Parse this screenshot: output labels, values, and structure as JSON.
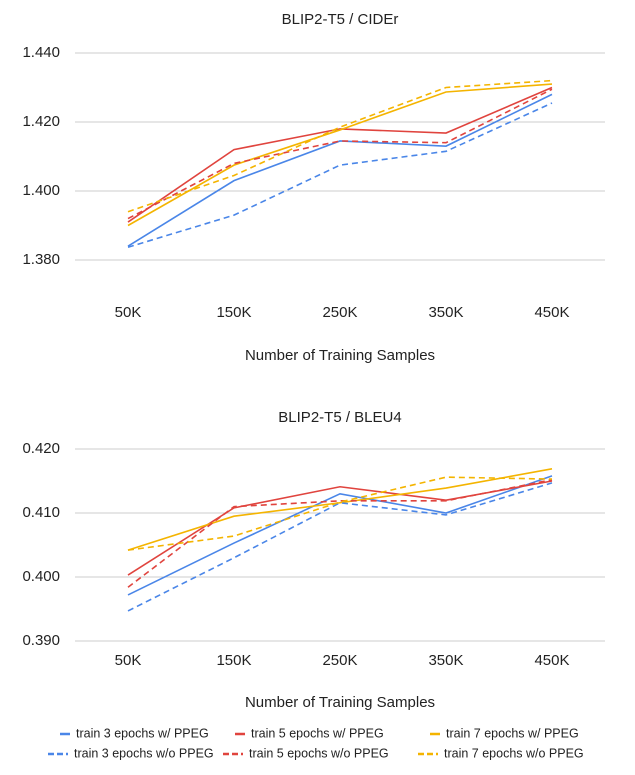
{
  "chart_data": [
    {
      "type": "line",
      "title": "BLIP2-T5 / CIDEr",
      "x_label": "Number of Training Samples",
      "categories": [
        "50K",
        "150K",
        "250K",
        "350K",
        "450K"
      ],
      "ylim": [
        1.38,
        1.44
      ],
      "yticks": [
        {
          "value": 1.38,
          "label": "1.380"
        },
        {
          "value": 1.4,
          "label": "1.400"
        },
        {
          "value": 1.42,
          "label": "1.420"
        },
        {
          "value": 1.44,
          "label": "1.440"
        }
      ],
      "grid": true,
      "series": [
        {
          "name": "train 3 epochs w/ PPEG",
          "color": "#4a86e8",
          "dashed": false,
          "values": [
            1.384,
            1.403,
            1.4145,
            1.413,
            1.428
          ]
        },
        {
          "name": "train 5 epochs w/ PPEG",
          "color": "#e0443e",
          "dashed": false,
          "values": [
            1.391,
            1.412,
            1.418,
            1.4168,
            1.43
          ]
        },
        {
          "name": "train 7 epochs w/ PPEG",
          "color": "#f4b400",
          "dashed": false,
          "values": [
            1.39,
            1.4075,
            1.4177,
            1.4287,
            1.431
          ]
        },
        {
          "name": "train 3 epochs w/o PPEG",
          "color": "#4a86e8",
          "dashed": true,
          "values": [
            1.3837,
            1.393,
            1.4075,
            1.4115,
            1.4255
          ]
        },
        {
          "name": "train 5 epochs w/o PPEG",
          "color": "#e0443e",
          "dashed": true,
          "values": [
            1.392,
            1.408,
            1.4145,
            1.414,
            1.4295
          ]
        },
        {
          "name": "train 7 epochs w/o PPEG",
          "color": "#f4b400",
          "dashed": true,
          "values": [
            1.394,
            1.4045,
            1.4185,
            1.43,
            1.432
          ]
        }
      ]
    },
    {
      "type": "line",
      "title": "BLIP2-T5 / BLEU4",
      "x_label": "Number of Training Samples",
      "categories": [
        "50K",
        "150K",
        "250K",
        "350K",
        "450K"
      ],
      "ylim": [
        0.39,
        0.42
      ],
      "yticks": [
        {
          "value": 0.39,
          "label": "0.390"
        },
        {
          "value": 0.4,
          "label": "0.400"
        },
        {
          "value": 0.41,
          "label": "0.410"
        },
        {
          "value": 0.42,
          "label": "0.420"
        }
      ],
      "grid": true,
      "series": [
        {
          "color": "#4a86e8",
          "dashed": false,
          "values": [
            0.3972,
            0.4053,
            0.413,
            0.41,
            0.4158
          ]
        },
        {
          "color": "#e0443e",
          "dashed": false,
          "values": [
            0.4003,
            0.4108,
            0.4141,
            0.412,
            0.415
          ]
        },
        {
          "color": "#f4b400",
          "dashed": false,
          "values": [
            0.4042,
            0.4095,
            0.4116,
            0.4139,
            0.4169
          ]
        },
        {
          "color": "#4a86e8",
          "dashed": true,
          "values": [
            0.3947,
            0.403,
            0.4116,
            0.4097,
            0.4147
          ]
        },
        {
          "color": "#e0443e",
          "dashed": true,
          "values": [
            0.3984,
            0.411,
            0.4119,
            0.4119,
            0.4152
          ]
        },
        {
          "color": "#f4b400",
          "dashed": true,
          "values": [
            0.4042,
            0.4064,
            0.4117,
            0.4156,
            0.4153
          ]
        }
      ]
    }
  ]
}
